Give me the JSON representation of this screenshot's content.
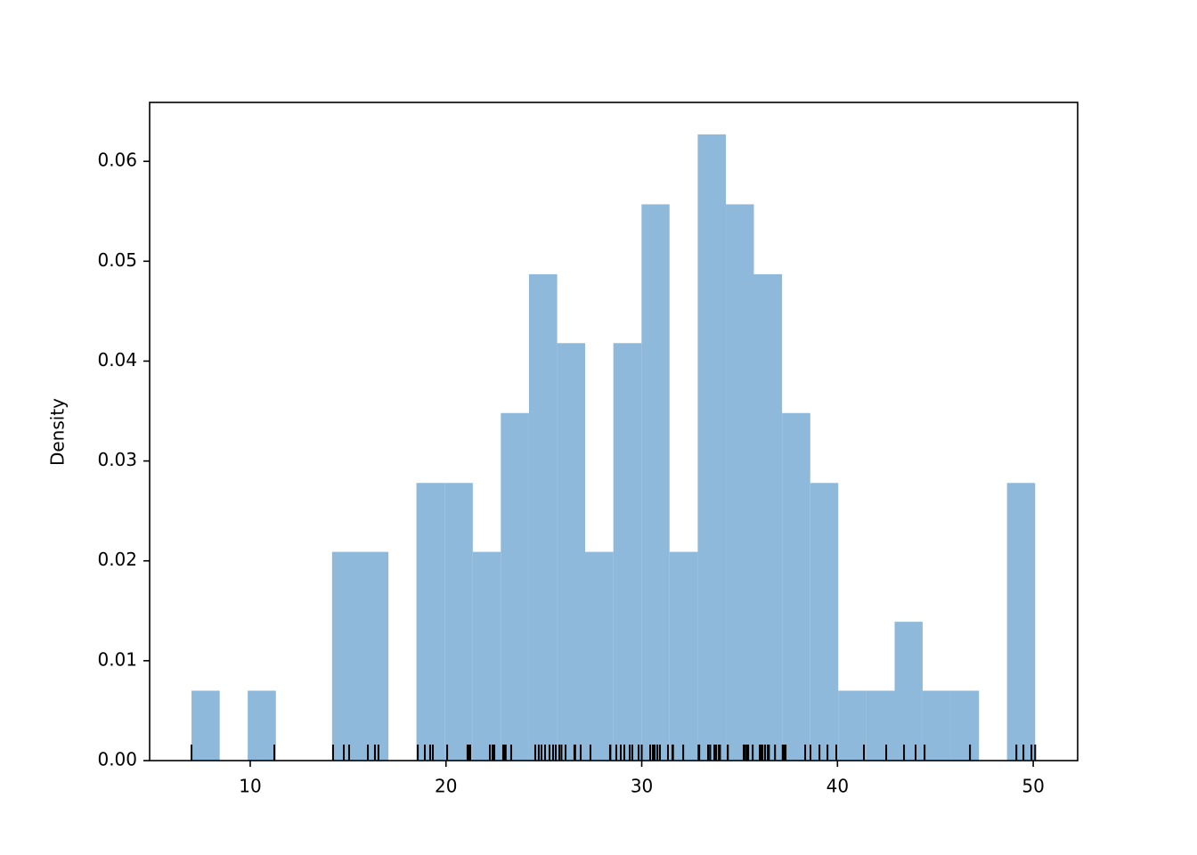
{
  "chart_data": {
    "type": "histogram",
    "ylabel": "Density",
    "bins": [
      7.0,
      8.44,
      9.87,
      11.31,
      12.75,
      14.18,
      15.62,
      17.06,
      18.49,
      19.93,
      21.37,
      22.8,
      24.24,
      25.68,
      27.11,
      28.55,
      29.99,
      31.42,
      32.86,
      34.3,
      35.73,
      37.17,
      38.61,
      40.04,
      41.48,
      42.92,
      44.35,
      45.79,
      47.23,
      48.66,
      50.1
    ],
    "values": [
      0.007,
      0,
      0.007,
      0,
      0,
      0.0209,
      0.0209,
      0,
      0.0278,
      0.0278,
      0.0209,
      0.0348,
      0.0487,
      0.0418,
      0.0209,
      0.0418,
      0.0557,
      0.0209,
      0.0627,
      0.0557,
      0.0487,
      0.0348,
      0.0278,
      0.007,
      0.007,
      0.0139,
      0.007,
      0.007,
      0,
      0.0278
    ],
    "color": "#8fb9da",
    "rug": [
      7.0,
      11.23,
      14.23,
      14.78,
      15.05,
      16.01,
      16.37,
      16.55,
      18.56,
      18.92,
      19.19,
      19.33,
      20.06,
      21.1,
      21.15,
      21.24,
      22.24,
      22.38,
      22.47,
      22.92,
      22.95,
      23.01,
      23.05,
      23.33,
      24.56,
      24.74,
      24.88,
      25.06,
      25.29,
      25.47,
      25.61,
      25.79,
      25.9,
      26.11,
      26.56,
      26.6,
      26.88,
      27.38,
      28.38,
      28.4,
      28.7,
      28.93,
      29.11,
      29.39,
      29.52,
      29.84,
      30.0,
      30.43,
      30.57,
      30.6,
      30.66,
      30.8,
      30.93,
      31.34,
      31.57,
      31.6,
      32.12,
      32.9,
      32.94,
      33.39,
      33.4,
      33.5,
      33.71,
      33.8,
      33.94,
      34.0,
      34.39,
      34.4,
      35.21,
      35.25,
      35.35,
      35.4,
      35.44,
      35.67,
      36.03,
      36.1,
      36.17,
      36.3,
      36.44,
      36.5,
      36.81,
      37.2,
      37.25,
      37.3,
      37.35,
      38.35,
      38.62,
      39.08,
      39.49,
      39.94,
      41.35,
      42.49,
      43.4,
      43.99,
      44.45,
      46.77,
      49.14,
      49.5,
      49.91,
      50.1
    ],
    "rug_color": "#000000",
    "xlim": [
      4.86,
      52.27
    ],
    "ylim": [
      0,
      0.0659
    ],
    "xticks": [
      10,
      20,
      30,
      40,
      50
    ],
    "yticks": [
      {
        "value": 0,
        "label": "0.00"
      },
      0.01,
      0.02,
      0.03,
      0.04,
      0.05,
      0.06
    ]
  }
}
